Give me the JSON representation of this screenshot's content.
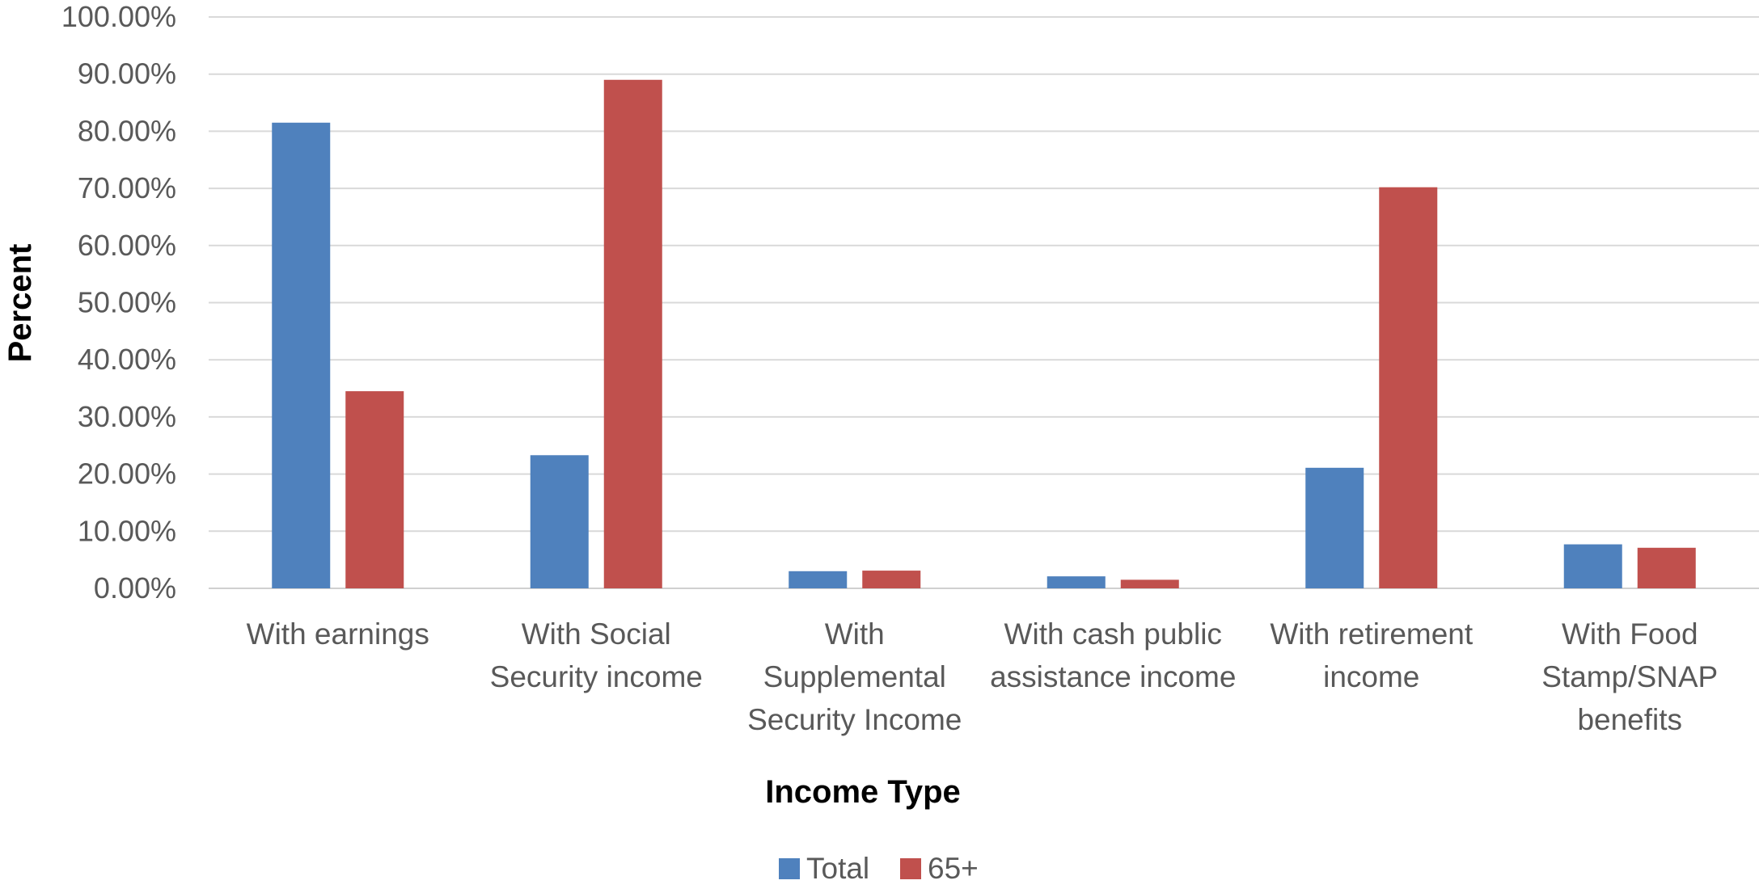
{
  "chart_data": {
    "type": "bar",
    "categories": [
      [
        "With earnings"
      ],
      [
        "With Social",
        "Security income"
      ],
      [
        "With",
        "Supplemental",
        "Security Income"
      ],
      [
        "With cash public",
        "assistance income"
      ],
      [
        "With retirement",
        "income"
      ],
      [
        "With Food",
        "Stamp/SNAP",
        "benefits"
      ]
    ],
    "series": [
      {
        "name": "Total",
        "color": "#4F81BD",
        "values": [
          81.5,
          23.3,
          3.0,
          2.1,
          21.1,
          7.7
        ]
      },
      {
        "name": "65+",
        "color": "#C0504D",
        "values": [
          34.5,
          89.0,
          3.1,
          1.5,
          70.2,
          7.1
        ]
      }
    ],
    "xlabel": "Income Type",
    "ylabel": "Percent",
    "ylim": [
      0,
      100
    ],
    "yticks": [
      "0.00%",
      "10.00%",
      "20.00%",
      "30.00%",
      "40.00%",
      "50.00%",
      "60.00%",
      "70.00%",
      "80.00%",
      "90.00%",
      "100.00%"
    ],
    "grid": true,
    "legend": "bottom"
  }
}
